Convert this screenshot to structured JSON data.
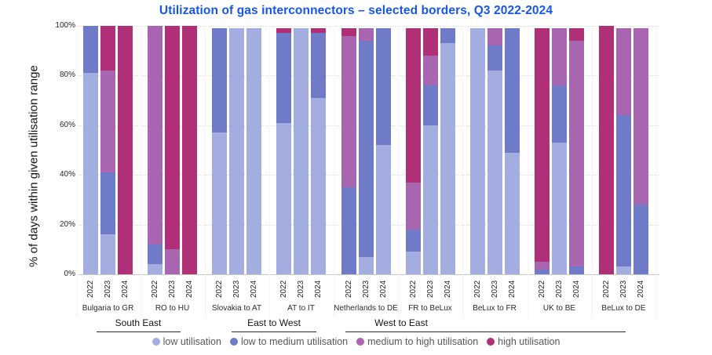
{
  "chart_data": {
    "type": "stacked-bar-100",
    "title": "Utilization of gas interconnectors – selected borders, Q3 2022-2024",
    "ylabel": "% of days within given utilisation range",
    "yticks": [
      "0%",
      "20%",
      "40%",
      "60%",
      "80%",
      "100%"
    ],
    "ylim": [
      0,
      100
    ],
    "grid": "horizontal-dotted",
    "legend_position": "bottom",
    "value_order": [
      "low utilisation",
      "low to medium utilisation",
      "medium to high utilisation",
      "high utilisation"
    ],
    "series_categories": [
      {
        "name": "low utilisation",
        "color": "#a4addf"
      },
      {
        "name": "low to medium utilisation",
        "color": "#6f7bc8"
      },
      {
        "name": "medium to high utilisation",
        "color": "#a966b0"
      },
      {
        "name": "high utilisation",
        "color": "#b03077"
      }
    ],
    "years": [
      "2022",
      "2023",
      "2024"
    ],
    "regions": [
      {
        "name": "South East",
        "group_indices": [
          0,
          1
        ]
      },
      {
        "name": "East to West",
        "group_indices": [
          2,
          3
        ]
      },
      {
        "name": "West to East",
        "group_indices": [
          4,
          5,
          6,
          7,
          8
        ]
      }
    ],
    "groups": [
      {
        "border": "Bulgaria to GR",
        "values": {
          "2022": [
            81,
            19,
            0,
            0
          ],
          "2023": [
            16,
            25,
            41,
            18
          ],
          "2024": [
            0,
            0,
            0,
            100
          ]
        }
      },
      {
        "border": "RO to HU",
        "values": {
          "2022": [
            4,
            8,
            88,
            0
          ],
          "2023": [
            0,
            0,
            10,
            90
          ],
          "2024": [
            0,
            0,
            0,
            100
          ]
        }
      },
      {
        "border": "Slovakia to AT",
        "values": {
          "2022": [
            57,
            42,
            0,
            0
          ],
          "2023": [
            99,
            0,
            0,
            0
          ],
          "2024": [
            99,
            0,
            0,
            0
          ]
        }
      },
      {
        "border": "AT to IT",
        "values": {
          "2022": [
            61,
            36,
            0,
            2
          ],
          "2023": [
            99,
            0,
            0,
            0
          ],
          "2024": [
            71,
            26,
            0,
            2
          ]
        }
      },
      {
        "border": "Netherlands to DE",
        "values": {
          "2022": [
            0,
            35,
            61,
            3
          ],
          "2023": [
            7,
            87,
            5,
            0
          ],
          "2024": [
            52,
            47,
            0,
            0
          ]
        }
      },
      {
        "border": "FR to BeLux",
        "values": {
          "2022": [
            9,
            9,
            19,
            62
          ],
          "2023": [
            60,
            16,
            12,
            11
          ],
          "2024": [
            93,
            6,
            0,
            0
          ]
        }
      },
      {
        "border": "BeLux to FR",
        "values": {
          "2022": [
            99,
            0,
            0,
            0
          ],
          "2023": [
            82,
            10,
            7,
            0
          ],
          "2024": [
            49,
            50,
            0,
            0
          ]
        }
      },
      {
        "border": "UK to BE",
        "values": {
          "2022": [
            0,
            2,
            3,
            94
          ],
          "2023": [
            53,
            23,
            23,
            0
          ],
          "2024": [
            0,
            3,
            91,
            5
          ]
        }
      },
      {
        "border": "BeLux to DE",
        "values": {
          "2022": [
            0,
            0,
            0,
            100
          ],
          "2023": [
            3,
            61,
            35,
            0
          ],
          "2024": [
            0,
            28,
            71,
            0
          ]
        }
      }
    ]
  }
}
